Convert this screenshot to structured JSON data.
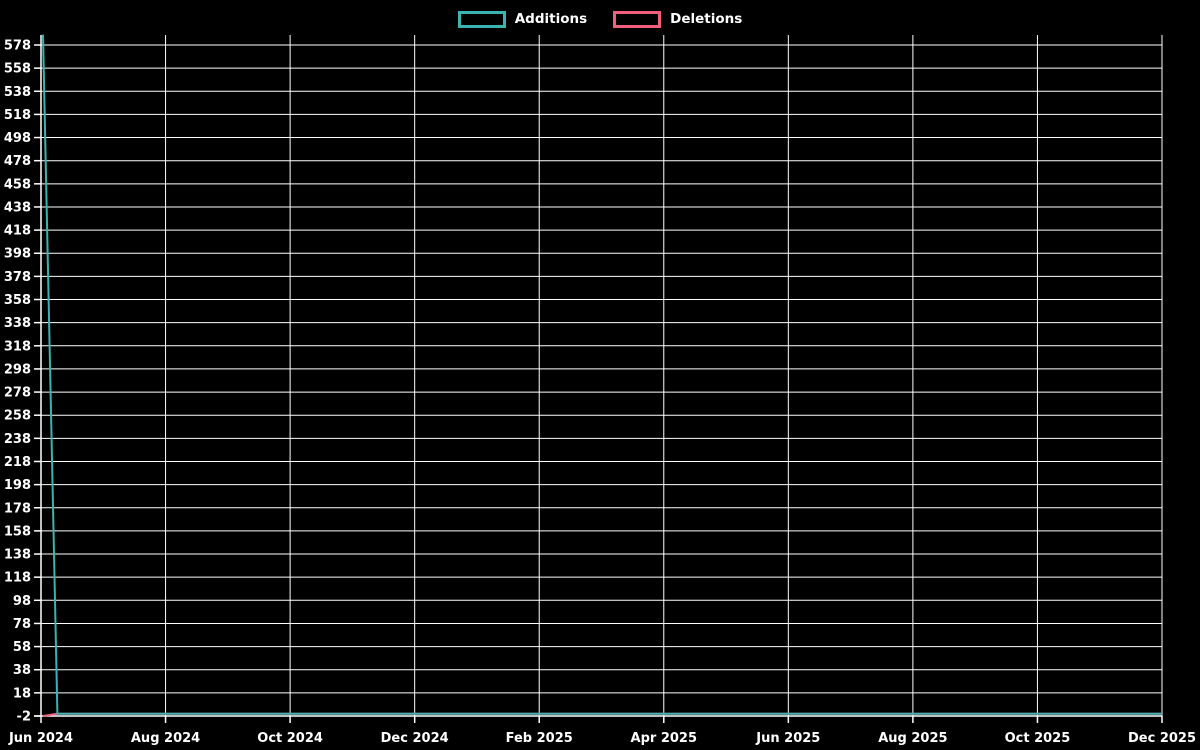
{
  "page": {
    "background": "#000000",
    "grid_color": "#ffffff",
    "axis_color": "#ffffff",
    "text_color": "#ffffff"
  },
  "legend": {
    "items": [
      {
        "id": "additions",
        "label": "Additions",
        "color": "#3bb4b1"
      },
      {
        "id": "deletions",
        "label": "Deletions",
        "color": "#f05f7c"
      }
    ]
  },
  "chart_data": {
    "type": "line",
    "title": "",
    "xlabel": "",
    "ylabel": "",
    "legend_position": "top-center",
    "grid": true,
    "background": "#000000",
    "x_axis": {
      "epoch": "2024-06-01",
      "range_days": [
        0,
        548
      ],
      "tick_labels": [
        "Jun 2024",
        "Aug 2024",
        "Oct 2024",
        "Dec 2024",
        "Feb 2025",
        "Apr 2025",
        "Jun 2025",
        "Aug 2025",
        "Oct 2025",
        "Dec 2025"
      ]
    },
    "y_axis": {
      "min": -2,
      "max": 578,
      "step": 20,
      "tick_labels": [
        578,
        558,
        538,
        518,
        498,
        478,
        458,
        438,
        418,
        398,
        378,
        358,
        338,
        318,
        298,
        278,
        258,
        238,
        218,
        198,
        178,
        158,
        138,
        118,
        98,
        78,
        58,
        38,
        18,
        -2
      ]
    },
    "series": [
      {
        "name": "Additions",
        "color": "#3bb4b1",
        "points_day_value": [
          [
            1,
            587
          ],
          [
            8,
            0
          ],
          [
            548,
            0
          ]
        ]
      },
      {
        "name": "Deletions",
        "color": "#f05f7c",
        "points_day_value": [
          [
            1,
            -2
          ],
          [
            8,
            0
          ],
          [
            548,
            0
          ]
        ]
      }
    ]
  }
}
